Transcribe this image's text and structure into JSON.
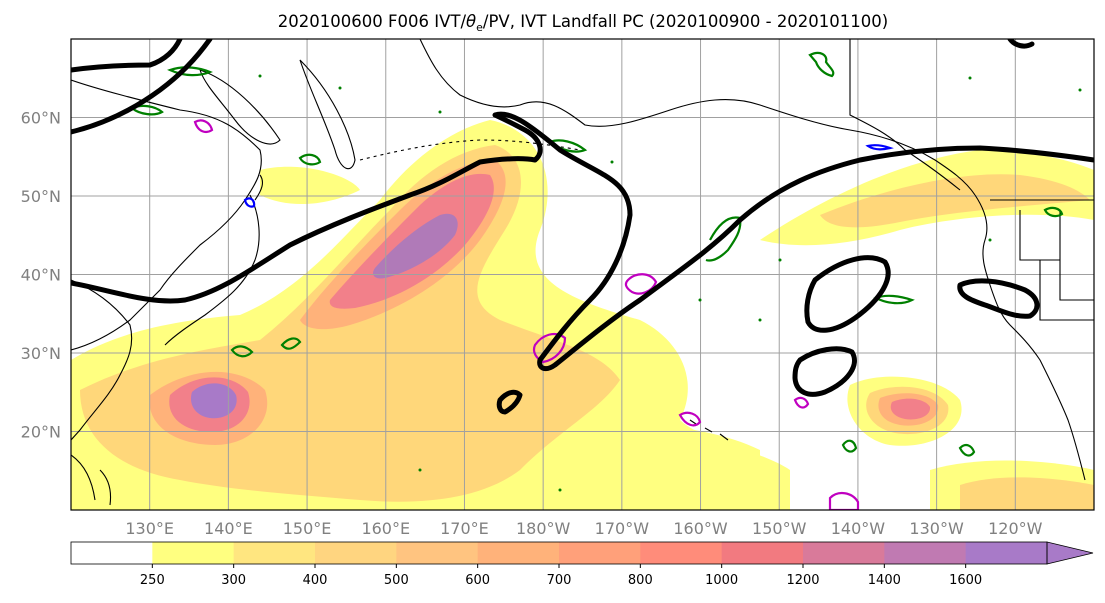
{
  "figure": {
    "title_main": "2020100600 F006 IVT/",
    "title_theta": "θ",
    "title_sub": "e",
    "title_rest": "/PV, IVT Landfall PC (2020100900 - 2020101100)"
  },
  "map": {
    "projection": "equirectangular",
    "lon_range": [
      120,
      250
    ],
    "lat_range": [
      10,
      70
    ],
    "lat_labels": [
      "20°N",
      "30°N",
      "40°N",
      "50°N",
      "60°N"
    ],
    "lat_values": [
      20,
      30,
      40,
      50,
      60
    ],
    "lon_labels": [
      "130°E",
      "140°E",
      "150°E",
      "160°E",
      "170°E",
      "180°W",
      "170°W",
      "160°W",
      "150°W",
      "140°W",
      "130°W",
      "120°W"
    ],
    "lon_values": [
      130,
      140,
      150,
      160,
      170,
      180,
      190,
      200,
      210,
      220,
      230,
      240
    ],
    "gridlines": true,
    "coastline_color": "#000000",
    "pv_contour_color": "#000000",
    "theta_e_contour_colors": [
      "#008000",
      "#0000ff",
      "#c000c0"
    ]
  },
  "colorbar": {
    "ticks": [
      "250",
      "300",
      "400",
      "500",
      "600",
      "700",
      "800",
      "1000",
      "1200",
      "1400",
      "1600"
    ],
    "colors": [
      "#ffff80",
      "#ffe680",
      "#ffd580",
      "#ffc480",
      "#ffb27a",
      "#ffa07a",
      "#ff8c7a",
      "#f27a80",
      "#d97a9a",
      "#c07ab2",
      "#a87ac8"
    ],
    "extend": "max"
  }
}
